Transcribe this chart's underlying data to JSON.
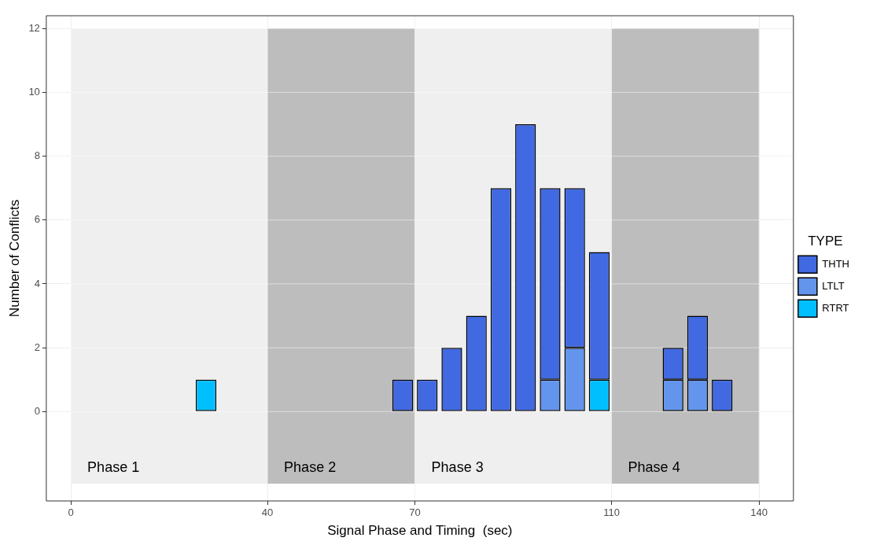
{
  "chart_data": {
    "type": "bar",
    "stacked": true,
    "xlabel": "Signal Phase and Timing  (sec)",
    "ylabel": "Number of Conflicts",
    "legend_title": "TYPE",
    "legend": "right",
    "grid": true,
    "x": [
      27.5,
      67.5,
      72.5,
      77.5,
      82.5,
      87.5,
      92.5,
      97.5,
      102.5,
      107.5,
      122.5,
      127.5,
      132.5
    ],
    "series": [
      {
        "name": "RTRT",
        "color": "#00bfff",
        "values": [
          1,
          null,
          null,
          null,
          null,
          null,
          null,
          null,
          null,
          1,
          null,
          null,
          null
        ]
      },
      {
        "name": "LTLT",
        "color": "#6495ed",
        "values": [
          null,
          null,
          null,
          null,
          null,
          null,
          null,
          1,
          2,
          null,
          1,
          1,
          null
        ]
      },
      {
        "name": "THTH",
        "color": "#4169e1",
        "values": [
          null,
          1,
          1,
          2,
          3,
          7,
          9,
          6,
          5,
          4,
          1,
          2,
          1
        ]
      }
    ],
    "xlim": [
      -5,
      147
    ],
    "xticks": [
      0,
      40,
      70,
      110,
      140
    ],
    "ylim": [
      -2.8,
      12.4
    ],
    "yticks": [
      0,
      2,
      4,
      6,
      8,
      10,
      12
    ],
    "bands": [
      {
        "axis": "x",
        "from": 0,
        "to": 40,
        "label": "Phase 1",
        "color": "#efefef"
      },
      {
        "axis": "x",
        "from": 40,
        "to": 70,
        "label": "Phase 2",
        "color": "#bdbdbd"
      },
      {
        "axis": "x",
        "from": 70,
        "to": 110,
        "label": "Phase 3",
        "color": "#efefef"
      },
      {
        "axis": "x",
        "from": 110,
        "to": 140,
        "label": "Phase 4",
        "color": "#bdbdbd"
      }
    ]
  }
}
